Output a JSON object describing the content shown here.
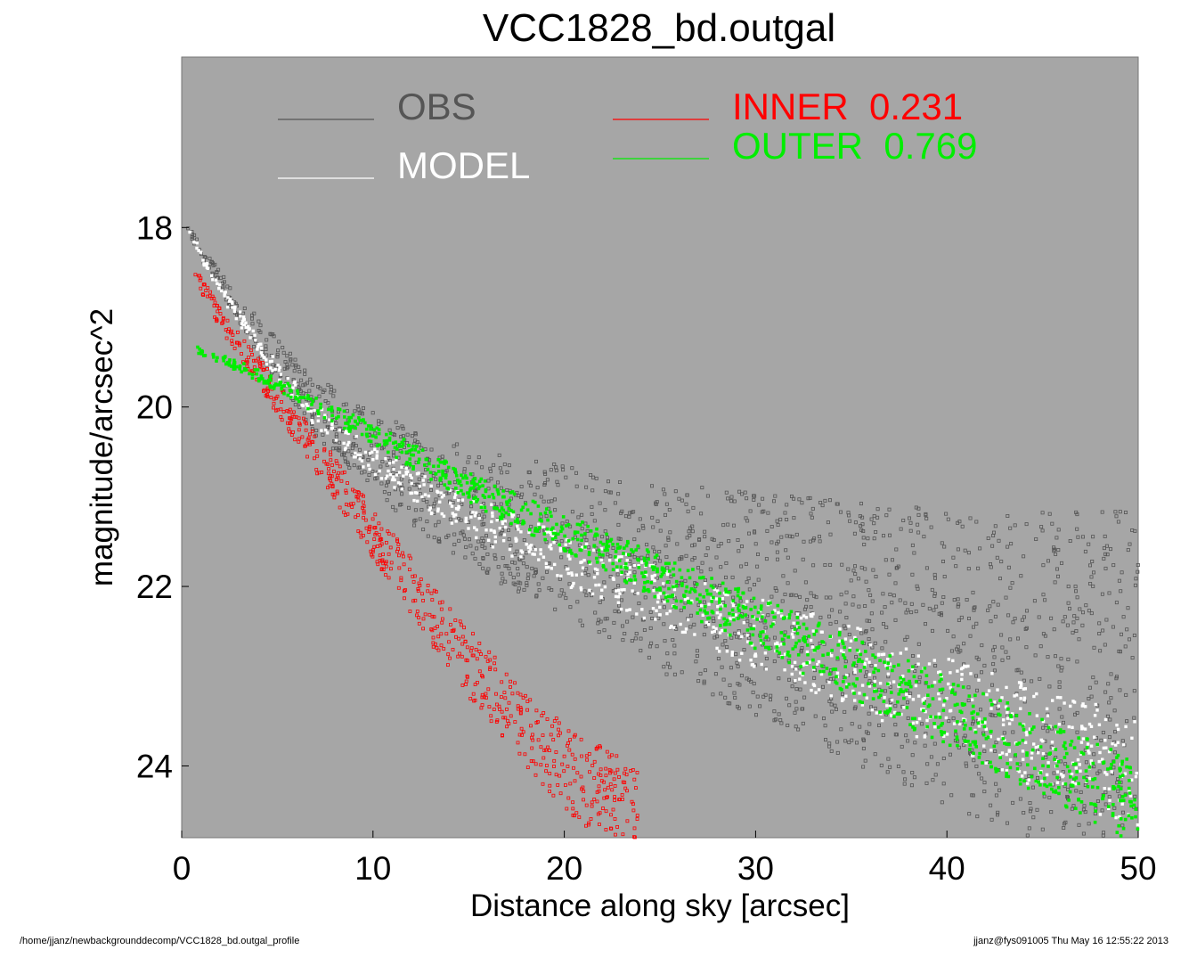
{
  "chart_data": {
    "type": "scatter",
    "title": "VCC1828_bd.outgal",
    "xlabel": "Distance along sky [arcsec]",
    "ylabel": "magnitude/arcsec^2",
    "xlim": [
      0,
      50
    ],
    "ylim": [
      16.1,
      24.8
    ],
    "y_inverted": true,
    "grid": false,
    "background_color": "#a6a6a6",
    "x_ticks": [
      "0",
      "10",
      "20",
      "30",
      "40",
      "50"
    ],
    "y_ticks": [
      "18",
      "20",
      "22",
      "24"
    ],
    "legend": [
      {
        "name": "OBS",
        "color": "#555555",
        "value": ""
      },
      {
        "name": "MODEL",
        "color": "#ffffff",
        "value": ""
      },
      {
        "name": "INNER",
        "color": "#ff0000",
        "value": "0.231"
      },
      {
        "name": "OUTER",
        "color": "#00ee00",
        "value": "0.769"
      }
    ],
    "series": [
      {
        "name": "OBS",
        "color": "#555555",
        "x": [
          0.3,
          1,
          2,
          3,
          5,
          7,
          10,
          13,
          16,
          20,
          25,
          30,
          35,
          40,
          45,
          50
        ],
        "y": [
          18.0,
          18.3,
          18.6,
          18.9,
          19.5,
          20.0,
          20.5,
          20.9,
          21.2,
          21.5,
          21.9,
          22.2,
          22.5,
          22.8,
          23.0,
          23.2
        ]
      },
      {
        "name": "MODEL",
        "color": "#ffffff",
        "x": [
          0.3,
          1,
          2,
          3,
          5,
          7,
          10,
          13,
          16,
          20,
          25,
          30,
          35,
          40,
          45,
          50
        ],
        "y": [
          18.0,
          18.3,
          18.7,
          19.0,
          19.6,
          20.1,
          20.6,
          21.0,
          21.3,
          21.7,
          22.1,
          22.5,
          22.9,
          23.3,
          23.7,
          24.1
        ]
      },
      {
        "name": "INNER",
        "color": "#ff0000",
        "x": [
          0.7,
          2,
          4,
          6,
          8,
          10,
          12,
          14,
          16,
          18,
          20,
          22,
          24
        ],
        "y": [
          18.5,
          19.0,
          19.6,
          20.2,
          20.8,
          21.4,
          22.0,
          22.6,
          23.1,
          23.6,
          24.0,
          24.3,
          24.6
        ]
      },
      {
        "name": "OUTER",
        "color": "#00ee00",
        "x": [
          0.7,
          3,
          5,
          8,
          10,
          15,
          20,
          25,
          30,
          35,
          40,
          45,
          50
        ],
        "y": [
          19.35,
          19.55,
          19.75,
          20.1,
          20.3,
          20.9,
          21.4,
          21.9,
          22.4,
          22.9,
          23.4,
          23.9,
          24.4
        ]
      }
    ]
  },
  "footer": {
    "path": "/home/jjanz/newbackgrounddecomp/VCC1828_bd.outgal_profile",
    "stamp": "jjanz@fys091005  Thu May 16 12:55:22 2013"
  }
}
